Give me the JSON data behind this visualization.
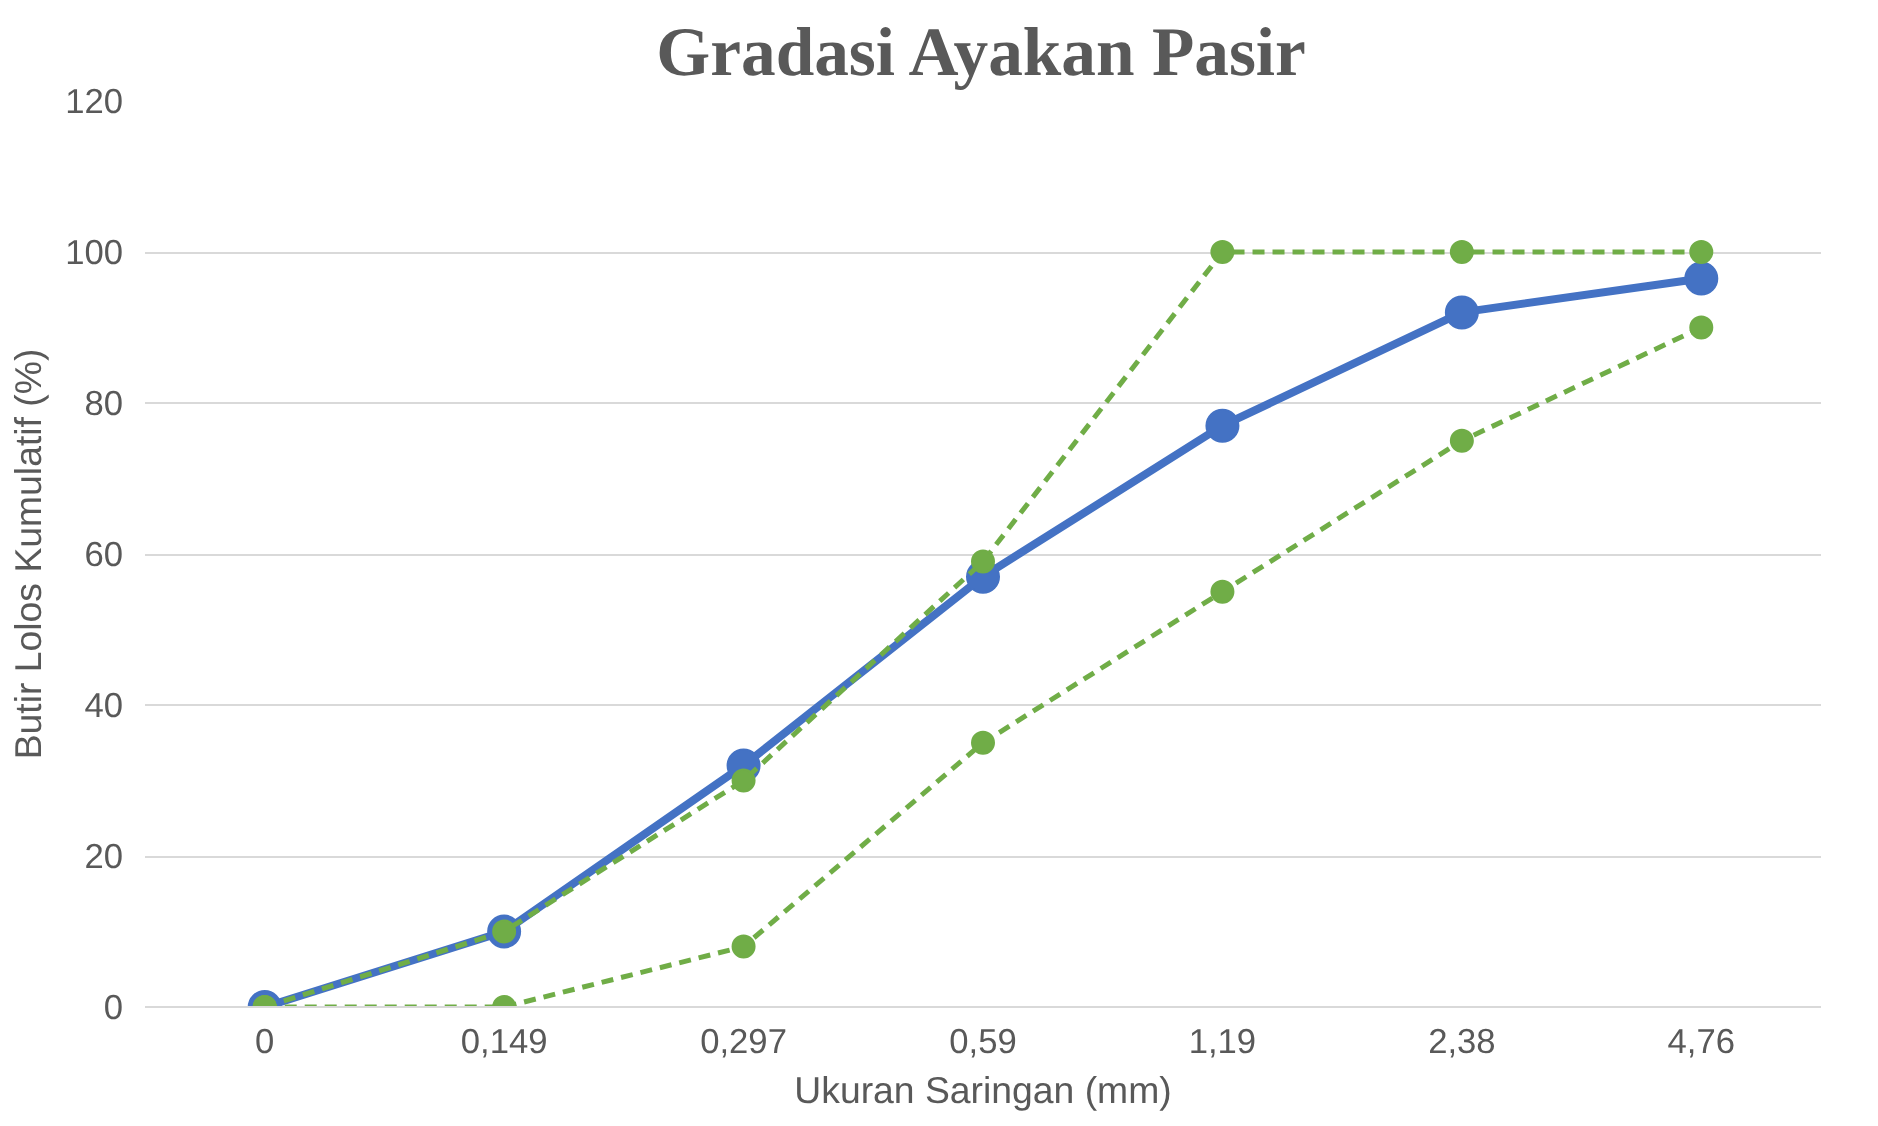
{
  "chart_data": {
    "type": "line",
    "title": "Gradasi Ayakan Pasir",
    "xlabel": "Ukuran Saringan (mm)",
    "ylabel": "Butir Lolos Kumulatif (%)",
    "categories": [
      "0",
      "0,149",
      "0,297",
      "0,59",
      "1,19",
      "2,38",
      "4,76"
    ],
    "series": [
      {
        "color": "#4472c4",
        "values": [
          0,
          10,
          32,
          57,
          77,
          92,
          96.5
        ],
        "line_style": "solid"
      },
      {
        "color": "#70ad47",
        "values": [
          0,
          0,
          8,
          35,
          55,
          75,
          90
        ],
        "line_style": "dashed"
      },
      {
        "color": "#70ad47",
        "values": [
          0,
          10,
          30,
          59,
          100,
          100,
          100
        ],
        "line_style": "dashed"
      }
    ],
    "ylim": [
      0,
      120
    ],
    "yticks": [
      0,
      20,
      40,
      60,
      80,
      100,
      120
    ],
    "grid": "y",
    "marker": "circle"
  }
}
